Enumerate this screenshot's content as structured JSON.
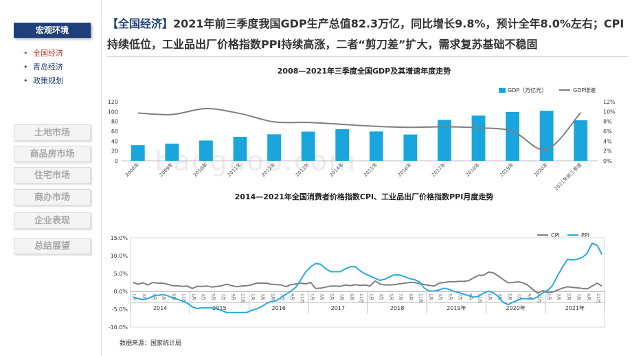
{
  "sidebar": {
    "header": "宏观环境",
    "sub_items": [
      {
        "label": "全国经济",
        "active": true
      },
      {
        "label": "青岛经济",
        "active": false
      },
      {
        "label": "政策规划",
        "active": false
      }
    ],
    "nav_buttons": [
      "土地市场",
      "商品房市场",
      "住宅市场",
      "商办市场",
      "企业表现",
      "总结展望"
    ]
  },
  "headline": {
    "tag": "【全国经济】",
    "text": "2021年前三季度我国GDP生产总值82.3万亿，同比增长9.8%，预计全年8.0%左右；CPI持续低位，工业品出厂价格指数PPI持续高涨，二者“剪刀差”扩大，需求复苏基础不稳固"
  },
  "watermark": "baogao8.com",
  "source_note": "数据来源：国家统计局",
  "colors": {
    "navy": "#1f3f7a",
    "bar_blue": "#1aa6dd",
    "line_gray": "#7f7f7f",
    "ppi_blue": "#29a9e0",
    "active_red": "#c0392b"
  },
  "chart_data": [
    {
      "type": "bar+line",
      "title": "2008—2021年三季度全国GDP及其增速年度走势",
      "categories": [
        "2008年",
        "2009年",
        "2010年",
        "2011年",
        "2012年",
        "2013年",
        "2014年",
        "2015年",
        "2016年",
        "2017年",
        "2018年",
        "2019年",
        "2020年",
        "2021年前三季度"
      ],
      "series": [
        {
          "name": "GDP（万亿元）",
          "kind": "bar",
          "axis": "left",
          "values": [
            31.9,
            34.9,
            41.2,
            48.8,
            53.9,
            59.3,
            64.4,
            59.5,
            53.5,
            83.2,
            91.9,
            99.1,
            101.6,
            82.3
          ]
        },
        {
          "name": "GDP增速",
          "kind": "line",
          "axis": "right",
          "values": [
            9.7,
            9.4,
            10.6,
            9.6,
            7.9,
            7.8,
            7.4,
            7.0,
            6.8,
            6.9,
            6.7,
            6.0,
            2.3,
            9.8
          ]
        }
      ],
      "y_left": {
        "min": 0,
        "max": 120,
        "ticks": [
          "0",
          "20",
          "40",
          "60",
          "80",
          "100",
          "120"
        ]
      },
      "y_right": {
        "min": 0,
        "max": 12,
        "ticks": [
          "0%",
          "2%",
          "4%",
          "6%",
          "8%",
          "10%",
          "12%"
        ]
      },
      "legend_position": "top-right",
      "grid": false
    },
    {
      "type": "line",
      "title": "2014—2021年全国消费者价格指数CPI、工业品出厂价格指数PPI月度走势",
      "y_range": [
        -10,
        15
      ],
      "y_ticks": [
        "-10.0%",
        "-5.0%",
        "0.0%",
        "5.0%",
        "10.0%",
        "15.0%"
      ],
      "month_labels": [
        "1月",
        "3月",
        "5月",
        "7月",
        "9月",
        "11月"
      ],
      "years": [
        "2014",
        "2015",
        "2016",
        "2017",
        "2018",
        "2019年",
        "2020年",
        "2021年"
      ],
      "legend_position": "top-right",
      "series": [
        {
          "name": "CPI",
          "values": [
            2.5,
            2.0,
            2.4,
            1.8,
            2.5,
            2.3,
            2.3,
            2.0,
            1.6,
            1.6,
            1.4,
            1.5,
            0.8,
            1.4,
            1.4,
            1.5,
            1.2,
            1.4,
            1.6,
            2.0,
            1.6,
            1.3,
            1.5,
            1.6,
            1.8,
            2.3,
            2.3,
            2.3,
            2.0,
            1.9,
            1.8,
            1.3,
            1.9,
            2.1,
            2.3,
            2.1,
            2.5,
            0.8,
            0.9,
            1.2,
            1.5,
            1.5,
            1.4,
            1.8,
            1.6,
            1.9,
            1.7,
            1.8,
            1.5,
            2.9,
            2.1,
            1.8,
            1.8,
            1.9,
            2.1,
            2.3,
            2.5,
            2.5,
            2.2,
            1.9,
            1.7,
            1.5,
            2.3,
            2.5,
            2.7,
            2.7,
            2.8,
            2.8,
            3.0,
            3.8,
            4.5,
            4.5,
            5.4,
            5.2,
            4.3,
            3.3,
            2.4,
            2.5,
            2.7,
            2.4,
            1.7,
            0.5,
            -0.5,
            0.2,
            -0.3,
            -0.2,
            0.4,
            0.9,
            1.3,
            1.1,
            1.0,
            0.8,
            0.7,
            1.5,
            2.3,
            1.5
          ]
        },
        {
          "name": "PPI",
          "values": [
            -1.6,
            -2.0,
            -2.3,
            -2.0,
            -1.4,
            -1.1,
            -0.9,
            -1.2,
            -1.8,
            -2.2,
            -2.7,
            -3.3,
            -4.3,
            -4.8,
            -4.6,
            -4.6,
            -4.6,
            -4.8,
            -5.4,
            -5.9,
            -5.9,
            -5.9,
            -5.9,
            -5.9,
            -5.3,
            -4.9,
            -4.3,
            -3.4,
            -2.8,
            -2.6,
            -1.7,
            -0.8,
            0.1,
            1.2,
            3.3,
            5.5,
            6.9,
            7.8,
            7.6,
            6.4,
            5.5,
            5.5,
            5.5,
            6.3,
            6.9,
            6.9,
            5.8,
            4.9,
            4.3,
            3.7,
            3.1,
            3.4,
            4.1,
            4.7,
            4.6,
            4.1,
            3.6,
            3.3,
            2.7,
            0.9,
            0.1,
            0.1,
            0.4,
            0.9,
            0.6,
            0.0,
            -0.3,
            -0.8,
            -1.2,
            -1.6,
            -1.4,
            -0.5,
            0.1,
            -0.4,
            -1.5,
            -3.1,
            -3.7,
            -3.0,
            -2.4,
            -2.0,
            -2.1,
            -2.1,
            -1.5,
            -0.4,
            0.3,
            1.7,
            4.4,
            6.8,
            9.0,
            8.8,
            9.0,
            9.5,
            10.7,
            13.5,
            12.9,
            10.3
          ]
        }
      ]
    }
  ]
}
